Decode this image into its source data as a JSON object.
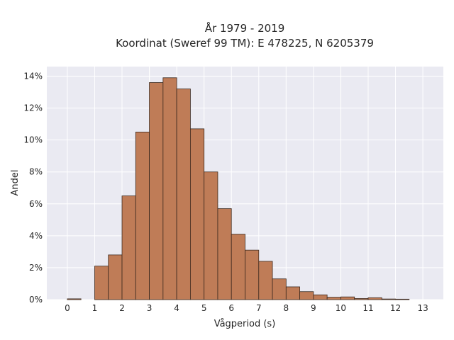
{
  "chart_data": {
    "type": "bar",
    "title_line1": "År 1979 - 2019",
    "title_line2": "Koordinat (Sweref 99 TM): E 478225, N 6205379",
    "xlabel": "Vågperiod (s)",
    "ylabel": "Andel",
    "xlim": [
      -0.75,
      13.75
    ],
    "ylim": [
      0,
      0.146
    ],
    "grid": true,
    "bin_width": 0.5,
    "bins": [
      {
        "x0": 0.0,
        "value": 0.0005
      },
      {
        "x0": 0.5,
        "value": 0.0
      },
      {
        "x0": 1.0,
        "value": 0.021
      },
      {
        "x0": 1.5,
        "value": 0.028
      },
      {
        "x0": 2.0,
        "value": 0.065
      },
      {
        "x0": 2.5,
        "value": 0.105
      },
      {
        "x0": 3.0,
        "value": 0.136
      },
      {
        "x0": 3.5,
        "value": 0.139
      },
      {
        "x0": 4.0,
        "value": 0.132
      },
      {
        "x0": 4.5,
        "value": 0.107
      },
      {
        "x0": 5.0,
        "value": 0.08
      },
      {
        "x0": 5.5,
        "value": 0.057
      },
      {
        "x0": 6.0,
        "value": 0.041
      },
      {
        "x0": 6.5,
        "value": 0.031
      },
      {
        "x0": 7.0,
        "value": 0.024
      },
      {
        "x0": 7.5,
        "value": 0.013
      },
      {
        "x0": 8.0,
        "value": 0.008
      },
      {
        "x0": 8.5,
        "value": 0.005
      },
      {
        "x0": 9.0,
        "value": 0.003
      },
      {
        "x0": 9.5,
        "value": 0.0015
      },
      {
        "x0": 10.0,
        "value": 0.0017
      },
      {
        "x0": 10.5,
        "value": 0.0007
      },
      {
        "x0": 11.0,
        "value": 0.0012
      },
      {
        "x0": 11.5,
        "value": 0.0004
      },
      {
        "x0": 12.0,
        "value": 0.0003
      }
    ],
    "x_ticks": [
      {
        "value": 0,
        "label": "0"
      },
      {
        "value": 1,
        "label": "1"
      },
      {
        "value": 2,
        "label": "2"
      },
      {
        "value": 3,
        "label": "3"
      },
      {
        "value": 4,
        "label": "4"
      },
      {
        "value": 5,
        "label": "5"
      },
      {
        "value": 6,
        "label": "6"
      },
      {
        "value": 7,
        "label": "7"
      },
      {
        "value": 8,
        "label": "8"
      },
      {
        "value": 9,
        "label": "9"
      },
      {
        "value": 10,
        "label": "10"
      },
      {
        "value": 11,
        "label": "11"
      },
      {
        "value": 12,
        "label": "12"
      },
      {
        "value": 13,
        "label": "13"
      }
    ],
    "y_ticks": [
      {
        "value": 0.0,
        "label": "0%"
      },
      {
        "value": 0.02,
        "label": "2%"
      },
      {
        "value": 0.04,
        "label": "4%"
      },
      {
        "value": 0.06,
        "label": "6%"
      },
      {
        "value": 0.08,
        "label": "8%"
      },
      {
        "value": 0.1,
        "label": "10%"
      },
      {
        "value": 0.12,
        "label": "12%"
      },
      {
        "value": 0.14,
        "label": "14%"
      }
    ],
    "colors": {
      "bar_fill": "#bf7c57",
      "bar_edge": "#3d2a1f",
      "plot_bg": "#eaeaf2",
      "grid": "#ffffff"
    }
  }
}
